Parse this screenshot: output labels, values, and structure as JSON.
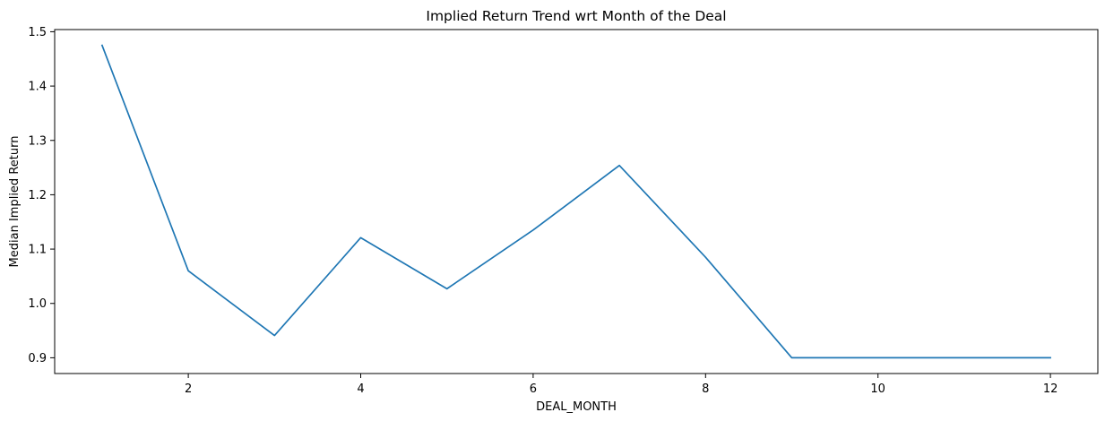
{
  "chart_data": {
    "type": "line",
    "title": "Implied Return Trend wrt Month of the Deal",
    "xlabel": "DEAL_MONTH",
    "ylabel": "Median Implied Return",
    "x": [
      1,
      2,
      3,
      4,
      5,
      6,
      7,
      8,
      9,
      10,
      11,
      12
    ],
    "series": [
      {
        "values": [
          1.475,
          1.06,
          0.941,
          1.121,
          1.027,
          1.135,
          1.254,
          1.085,
          0.9,
          0.9,
          0.9,
          0.9
        ],
        "color": "#1f77b4"
      }
    ],
    "xlim": [
      0.45,
      12.55
    ],
    "ylim": [
      0.871,
      1.504
    ],
    "xticks": [
      2,
      4,
      6,
      8,
      10,
      12
    ],
    "xtick_labels": [
      "2",
      "4",
      "6",
      "8",
      "10",
      "12"
    ],
    "yticks": [
      0.9,
      1.0,
      1.1,
      1.2,
      1.3,
      1.4,
      1.5
    ],
    "ytick_labels": [
      "0.9",
      "1.0",
      "1.1",
      "1.2",
      "1.3",
      "1.4",
      "1.5"
    ],
    "grid": false,
    "legend": "none"
  }
}
